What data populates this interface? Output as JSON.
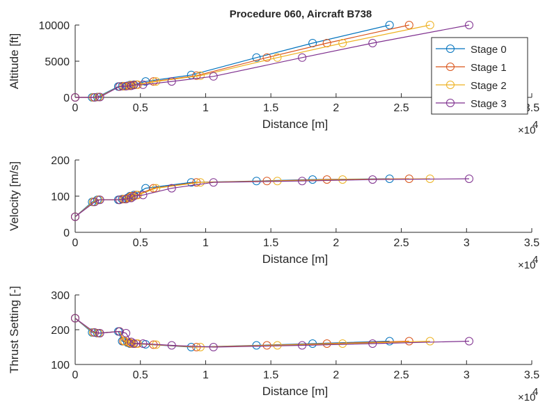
{
  "figure_title": "Procedure 060, Aircraft B738",
  "x_exponent": "×10",
  "x_exponent_power": "4",
  "chart_data": [
    {
      "type": "line",
      "ylabel": "Altitude [ft]",
      "xlabel": "Distance [m]",
      "xlim": [
        0,
        35000
      ],
      "ylim": [
        0,
        10000
      ],
      "xticks": [
        0,
        5000,
        10000,
        15000,
        20000,
        25000,
        30000,
        35000
      ],
      "xtick_labels": [
        "0",
        "0.5",
        "1",
        "1.5",
        "2",
        "2.5",
        "3",
        "3.5"
      ],
      "yticks": [
        0,
        5000,
        10000
      ],
      "ytick_labels": [
        "0",
        "5000",
        "10000"
      ],
      "legend": {
        "placement": "right",
        "entries": [
          "Stage 0",
          "Stage 1",
          "Stage 2",
          "Stage 3"
        ]
      },
      "series": [
        {
          "name": "Stage 0",
          "color": "#0072BD",
          "x": [
            0,
            1300,
            1700,
            3300,
            3600,
            4000,
            4200,
            4500,
            5400,
            8900,
            13900,
            18200,
            24100
          ],
          "y": [
            0,
            0,
            50,
            1500,
            1550,
            1600,
            1700,
            1750,
            2200,
            3100,
            5500,
            7500,
            10000
          ]
        },
        {
          "name": "Stage 1",
          "color": "#D95319",
          "x": [
            0,
            1400,
            1800,
            3400,
            3700,
            4100,
            4300,
            4700,
            6000,
            9300,
            14700,
            19300,
            25600
          ],
          "y": [
            0,
            0,
            50,
            1500,
            1550,
            1600,
            1700,
            1750,
            2200,
            3000,
            5500,
            7500,
            10000
          ]
        },
        {
          "name": "Stage 2",
          "color": "#EDB120",
          "x": [
            0,
            1400,
            1800,
            3400,
            3800,
            4200,
            4400,
            4800,
            6200,
            9600,
            15500,
            20500,
            27200
          ],
          "y": [
            0,
            0,
            50,
            1500,
            1550,
            1600,
            1700,
            1750,
            2200,
            3000,
            5500,
            7500,
            10000
          ]
        },
        {
          "name": "Stage 3",
          "color": "#7E2F8E",
          "x": [
            0,
            1500,
            1900,
            3400,
            3900,
            4300,
            4500,
            5200,
            7400,
            10600,
            17400,
            22800,
            30200
          ],
          "y": [
            0,
            0,
            50,
            1500,
            1550,
            1600,
            1700,
            1750,
            2200,
            2900,
            5500,
            7500,
            10000
          ]
        }
      ]
    },
    {
      "type": "line",
      "ylabel": "Velocity [m/s]",
      "xlabel": "Distance [m]",
      "xlim": [
        0,
        35000
      ],
      "ylim": [
        0,
        200
      ],
      "xticks": [
        0,
        5000,
        10000,
        15000,
        20000,
        25000,
        30000,
        35000
      ],
      "xtick_labels": [
        "0",
        "0.5",
        "1",
        "1.5",
        "2",
        "2.5",
        "3",
        "3.5"
      ],
      "yticks": [
        0,
        100,
        200
      ],
      "ytick_labels": [
        "0",
        "100",
        "200"
      ],
      "series": [
        {
          "name": "Stage 0",
          "color": "#0072BD",
          "x": [
            0,
            1300,
            1700,
            3300,
            3600,
            4000,
            4200,
            4500,
            5400,
            8900,
            13900,
            18200,
            24100
          ],
          "y": [
            43,
            84,
            90,
            90,
            92,
            95,
            100,
            103,
            122,
            138,
            142,
            146,
            148
          ]
        },
        {
          "name": "Stage 1",
          "color": "#D95319",
          "x": [
            0,
            1400,
            1800,
            3400,
            3700,
            4100,
            4300,
            4700,
            6000,
            9300,
            14700,
            19300,
            25600
          ],
          "y": [
            43,
            84,
            90,
            90,
            92,
            95,
            100,
            103,
            122,
            138,
            142,
            146,
            148
          ]
        },
        {
          "name": "Stage 2",
          "color": "#EDB120",
          "x": [
            0,
            1400,
            1800,
            3400,
            3800,
            4200,
            4400,
            4800,
            6200,
            9600,
            15500,
            20500,
            27200
          ],
          "y": [
            43,
            84,
            90,
            90,
            92,
            95,
            100,
            103,
            122,
            138,
            142,
            146,
            148
          ]
        },
        {
          "name": "Stage 3",
          "color": "#7E2F8E",
          "x": [
            0,
            1500,
            1900,
            3400,
            3900,
            4300,
            4500,
            5200,
            7400,
            10600,
            17400,
            22800,
            30200
          ],
          "y": [
            43,
            84,
            90,
            90,
            92,
            95,
            100,
            103,
            122,
            138,
            142,
            146,
            148
          ]
        }
      ]
    },
    {
      "type": "line",
      "ylabel": "Thrust Setting [-]",
      "xlabel": "Distance [m]",
      "xlim": [
        0,
        35000
      ],
      "ylim": [
        100,
        300
      ],
      "xticks": [
        0,
        5000,
        10000,
        15000,
        20000,
        25000,
        30000,
        35000
      ],
      "xtick_labels": [
        "0",
        "0.5",
        "1",
        "1.5",
        "2",
        "2.5",
        "3",
        "3.5"
      ],
      "yticks": [
        100,
        200,
        300
      ],
      "ytick_labels": [
        "100",
        "200",
        "300"
      ],
      "series": [
        {
          "name": "Stage 0",
          "color": "#0072BD",
          "x": [
            0,
            1300,
            1700,
            3300,
            3600,
            4000,
            4200,
            4500,
            5400,
            8900,
            13900,
            18200,
            24100
          ],
          "y": [
            233,
            192,
            190,
            195,
            167,
            163,
            160,
            160,
            158,
            150,
            155,
            160,
            167
          ]
        },
        {
          "name": "Stage 1",
          "color": "#D95319",
          "x": [
            0,
            1400,
            1800,
            3400,
            3700,
            4100,
            4300,
            4700,
            6000,
            9300,
            14700,
            19300,
            25600
          ],
          "y": [
            233,
            192,
            190,
            195,
            167,
            163,
            160,
            160,
            157,
            150,
            155,
            160,
            167
          ]
        },
        {
          "name": "Stage 2",
          "color": "#EDB120",
          "x": [
            0,
            1400,
            1800,
            3400,
            3800,
            4200,
            4400,
            4800,
            6200,
            9600,
            15500,
            20500,
            27200
          ],
          "y": [
            233,
            192,
            190,
            195,
            167,
            163,
            160,
            160,
            157,
            150,
            155,
            160,
            167
          ]
        },
        {
          "name": "Stage 3",
          "color": "#7E2F8E",
          "x": [
            0,
            1500,
            1900,
            3400,
            3900,
            4300,
            4500,
            5200,
            7400,
            10600,
            17400,
            22800,
            30200
          ],
          "y": [
            233,
            192,
            190,
            195,
            190,
            165,
            160,
            160,
            155,
            150,
            155,
            160,
            167
          ]
        }
      ]
    }
  ]
}
